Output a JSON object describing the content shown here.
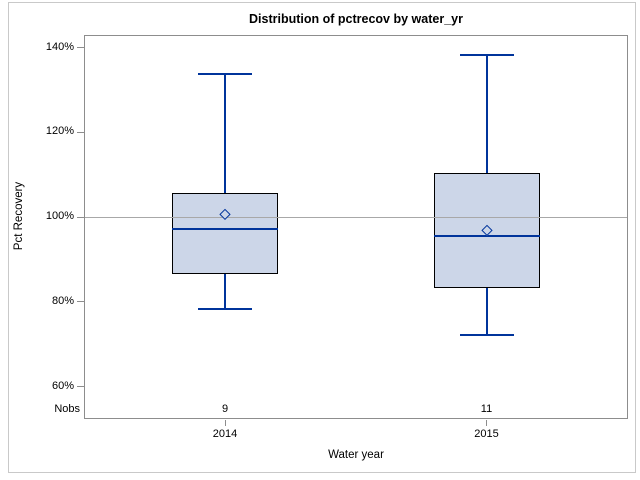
{
  "figure": {
    "background": "#ffffff",
    "outer_border_color": "#c9c9c9"
  },
  "chart_data": {
    "type": "boxplot",
    "title": "Distribution of pctrecov by water_yr",
    "xlabel": "Water year",
    "ylabel": "Pct Recovery",
    "nobs_label": "Nobs",
    "y_ticks": [
      {
        "label": "140%",
        "value": 140
      },
      {
        "label": "120%",
        "value": 120
      },
      {
        "label": "100%",
        "value": 100
      },
      {
        "label": "80%",
        "value": 80
      },
      {
        "label": "60%",
        "value": 60
      }
    ],
    "y_axis_range": [
      57,
      143
    ],
    "refline_value": 100,
    "grid": "single-refline-at-100",
    "legend": "none",
    "categories": [
      "2014",
      "2015"
    ],
    "series": [
      {
        "category": "2014",
        "nobs": "9",
        "min": 78.2,
        "q1": 86.4,
        "median": 97.0,
        "mean": 100.6,
        "q3": 105.5,
        "max": 133.6
      },
      {
        "category": "2015",
        "nobs": "11",
        "min": 72.0,
        "q1": 83.1,
        "median": 95.3,
        "mean": 96.8,
        "q3": 110.3,
        "max": 138.1
      }
    ]
  },
  "colors": {
    "box_fill": "#ccd6e8",
    "box_border": "#000000",
    "whisker": "#00349b",
    "median": "#00349b",
    "mean_marker_outline": "#00349b",
    "refline": "#a8a8a8",
    "axis_frame": "#8d8d8d",
    "tick": "#8d8d8d",
    "text": "#000000"
  }
}
